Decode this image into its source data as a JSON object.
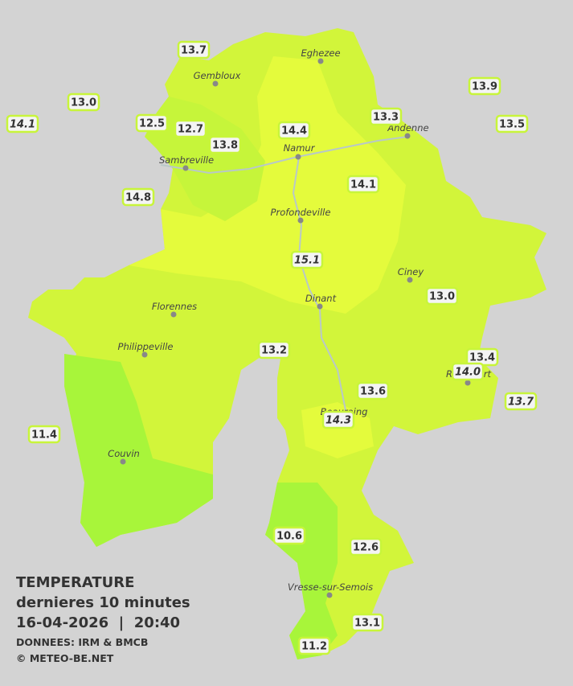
{
  "header": {
    "title": "TEMPERATURE",
    "subtitle": "dernieres 10 minutes",
    "datetime": "16-04-2026  |  20:40",
    "source": "DONNEES: IRM & BMCB",
    "copyright": "© METEO-BE.NET"
  },
  "cities": [
    "Eghezee",
    "Gembloux",
    "Andenne",
    "Namur",
    "Sambreville",
    "Profondeville",
    "Ciney",
    "Dinant",
    "Florennes",
    "Philippeville",
    "Couvin",
    "Beauraing",
    "Rochefort",
    "Vresse-sur-Semois"
  ],
  "stations": [
    "13.7",
    "13.0",
    "14.1",
    "12.5",
    "12.7",
    "13.8",
    "14.4",
    "13.3",
    "13.9",
    "13.5",
    "14.8",
    "14.1",
    "15.1",
    "13.0",
    "13.2",
    "13.4",
    "14.0",
    "13.6",
    "13.7",
    "14.3",
    "11.4",
    "10.6",
    "12.6",
    "13.1",
    "11.2"
  ]
}
